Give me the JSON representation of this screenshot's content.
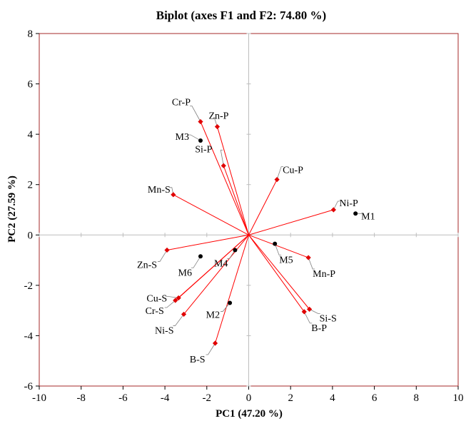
{
  "chart_data": {
    "type": "scatter",
    "title": "Biplot (axes F1 and F2: 74.80 %)",
    "xlabel": "PC1 (47.20 %)",
    "ylabel": "PC2 (27.59 %)",
    "xlim": [
      -10,
      10
    ],
    "ylim": [
      -6,
      8
    ],
    "xticks": [
      -10,
      -8,
      -6,
      -4,
      -2,
      0,
      2,
      4,
      6,
      8,
      10
    ],
    "yticks": [
      -6,
      -4,
      -2,
      0,
      2,
      4,
      6,
      8
    ],
    "grid": false,
    "colors": {
      "frame": "#a52a2a",
      "vector": "#ff0000",
      "marker_variable": "#e00000",
      "marker_observation": "#000000",
      "leader": "#808080"
    },
    "variables": [
      {
        "label": "Cr-P",
        "x": -2.3,
        "y": 4.5
      },
      {
        "label": "Zn-P",
        "x": -1.5,
        "y": 4.3
      },
      {
        "label": "Si-P",
        "x": -1.2,
        "y": 2.75
      },
      {
        "label": "Cu-P",
        "x": 1.35,
        "y": 2.2
      },
      {
        "label": "Ni-P",
        "x": 4.05,
        "y": 1.0
      },
      {
        "label": "Mn-S",
        "x": -3.6,
        "y": 1.6
      },
      {
        "label": "Zn-S",
        "x": -3.9,
        "y": -0.6
      },
      {
        "label": "Mn-P",
        "x": 2.85,
        "y": -0.9
      },
      {
        "label": "Cu-S",
        "x": -3.35,
        "y": -2.5
      },
      {
        "label": "Cr-S",
        "x": -3.5,
        "y": -2.6
      },
      {
        "label": "Ni-S",
        "x": -3.1,
        "y": -3.15
      },
      {
        "label": "Si-S",
        "x": 2.9,
        "y": -2.95
      },
      {
        "label": "B-P",
        "x": 2.65,
        "y": -3.05
      },
      {
        "label": "B-S",
        "x": -1.6,
        "y": -4.3
      }
    ],
    "observations": [
      {
        "label": "M1",
        "x": 5.1,
        "y": 0.85
      },
      {
        "label": "M3",
        "x": -2.3,
        "y": 3.75
      },
      {
        "label": "M4",
        "x": -0.65,
        "y": -0.6
      },
      {
        "label": "M5",
        "x": 1.25,
        "y": -0.35
      },
      {
        "label": "M6",
        "x": -2.3,
        "y": -0.85
      },
      {
        "label": "M2",
        "x": -0.9,
        "y": -2.7
      }
    ]
  }
}
